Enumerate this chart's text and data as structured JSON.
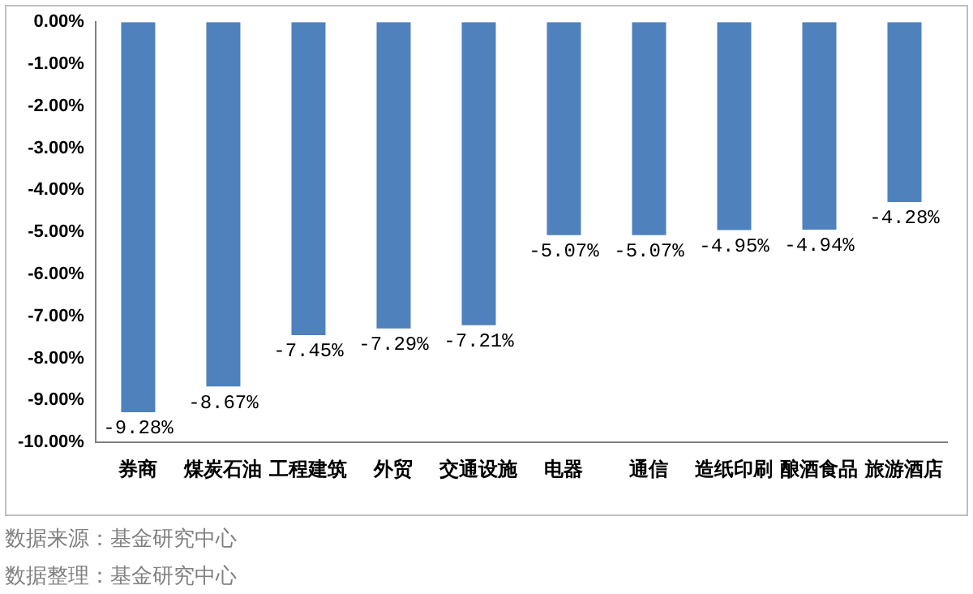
{
  "chart_data": {
    "type": "bar",
    "categories": [
      "券商",
      "煤炭石油",
      "工程建筑",
      "外贸",
      "交通设施",
      "电器",
      "通信",
      "造纸印刷",
      "酿酒食品",
      "旅游酒店"
    ],
    "values": [
      -9.28,
      -8.67,
      -7.45,
      -7.29,
      -7.21,
      -5.07,
      -5.07,
      -4.95,
      -4.94,
      -4.28
    ],
    "value_labels": [
      "-9.28%",
      "-8.67%",
      "-7.45%",
      "-7.29%",
      "-7.21%",
      "-5.07%",
      "-5.07%",
      "-4.95%",
      "-4.94%",
      "-4.28%"
    ],
    "color": "#4f81bd",
    "ylim": [
      -10,
      0
    ],
    "yticks": [
      {
        "value": 0,
        "label": "0.00%"
      },
      {
        "value": -1,
        "label": "-1.00%"
      },
      {
        "value": -2,
        "label": "-2.00%"
      },
      {
        "value": -3,
        "label": "-3.00%"
      },
      {
        "value": -4,
        "label": "-4.00%"
      },
      {
        "value": -5,
        "label": "-5.00%"
      },
      {
        "value": -6,
        "label": "-6.00%"
      },
      {
        "value": -7,
        "label": "-7.00%"
      },
      {
        "value": -8,
        "label": "-8.00%"
      },
      {
        "value": -9,
        "label": "-9.00%"
      },
      {
        "value": -10,
        "label": "-10.00%"
      }
    ],
    "grid": false,
    "legend": false,
    "annotations": [
      "数据来源：基金研究中心",
      "数据整理：基金研究中心"
    ]
  }
}
